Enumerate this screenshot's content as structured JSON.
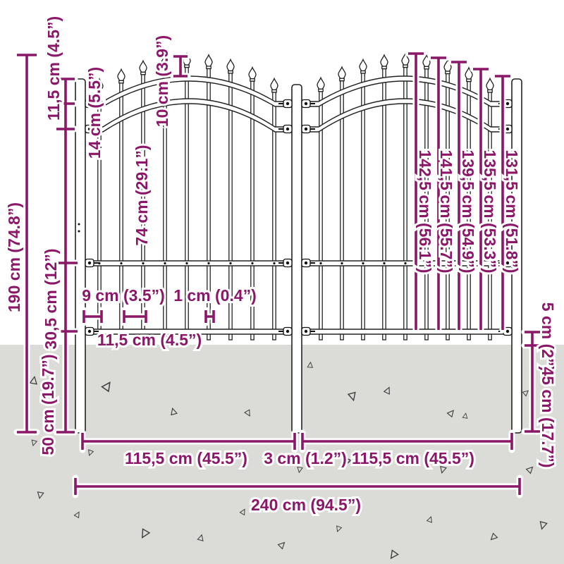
{
  "diagram_title": "fence-dimension-diagram",
  "dimensions": {
    "total_height": "190 cm (74.8”)",
    "post_top_to_upper_rail": "11,5 cm (4.5”)",
    "upper_rail_gap": "14 cm (5.5”)",
    "spike_above_rail": "10 cm (3.9”)",
    "upper_to_middle_rail": "74 cm (29.1”)",
    "middle_to_bottom_rail": "30,5 cm (12”)",
    "post_below_ground_left": "50 cm (19.7”)",
    "bar_spacing": "9 cm (3.5”)",
    "bar_thickness": "1 cm (0.4”)",
    "rail_inset": "11,5 cm (4.5”)",
    "bar_heights": [
      "142,5 cm (56.1”)",
      "141,5 cm (55.7”)",
      "139,5 cm (54.9”)",
      "135,5 cm (53.3”)",
      "131,5 cm (51.8”)"
    ],
    "bottom_rail_above_ground": "5 cm (2”)",
    "post_below_ground_right": "45 cm (17.7”)",
    "left_panel_width": "115,5 cm (45.5”)",
    "middle_post_width": "3 cm (1.2”)",
    "right_panel_width": "115,5 cm (45.5”)",
    "total_width": "240 cm (94.5”)"
  }
}
